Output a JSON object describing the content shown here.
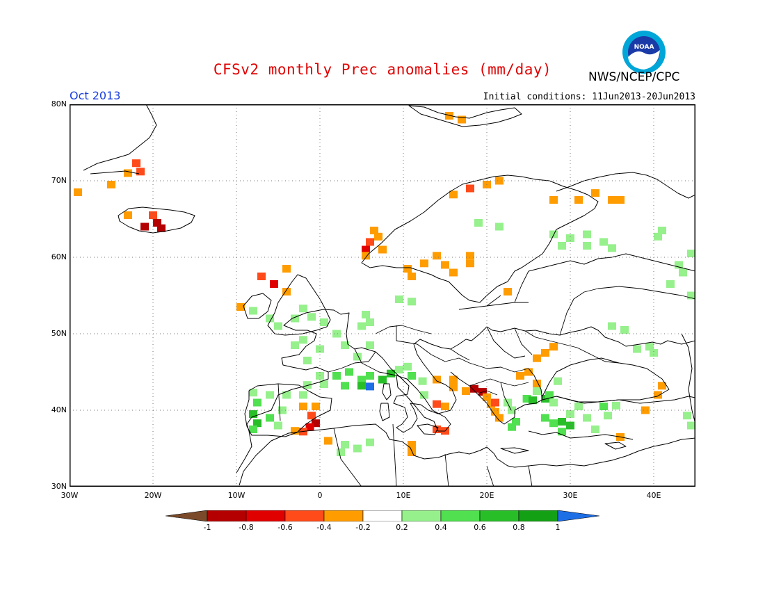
{
  "title": "CFSv2 monthly Prec anomalies (mm/day)",
  "agency": "NWS/NCEP/CPC",
  "logo_text": "NOAA",
  "month": "Oct 2013",
  "initial_conditions": "Initial conditions: 11Jun2013-20Jun2013",
  "y_ticks": [
    "80N",
    "70N",
    "60N",
    "50N",
    "40N",
    "30N"
  ],
  "x_ticks": [
    "30W",
    "20W",
    "10W",
    "0",
    "10E",
    "20E",
    "30E",
    "40E"
  ],
  "colorbar": {
    "labels": [
      "-1",
      "-0.8",
      "-0.6",
      "-0.4",
      "-0.2",
      "0.2",
      "0.4",
      "0.6",
      "0.8",
      "1"
    ],
    "colors": [
      "#7a4a2a",
      "#b40000",
      "#e00000",
      "#ff4a1a",
      "#ff9c00",
      "#ffffff",
      "#96f08c",
      "#50e050",
      "#28be28",
      "#14a014",
      "#1e6ee6"
    ]
  },
  "map": {
    "lon_range": [
      -30,
      45
    ],
    "lat_range": [
      30,
      80
    ],
    "grid_dotted": true,
    "anomaly_patches": [
      {
        "lon": -29,
        "lat": 68.5,
        "v": -0.3
      },
      {
        "lon": -25,
        "lat": 69.5,
        "v": -0.3
      },
      {
        "lon": -23,
        "lat": 71,
        "v": -0.3
      },
      {
        "lon": -21.5,
        "lat": 71.2,
        "v": -0.5
      },
      {
        "lon": -22,
        "lat": 72.3,
        "v": -0.5
      },
      {
        "lon": -23,
        "lat": 65.5,
        "v": -0.3
      },
      {
        "lon": -20,
        "lat": 65.5,
        "v": -0.5
      },
      {
        "lon": -19.5,
        "lat": 64.5,
        "v": -0.9
      },
      {
        "lon": -21,
        "lat": 64,
        "v": -0.9
      },
      {
        "lon": -19,
        "lat": 63.8,
        "v": -0.9
      },
      {
        "lon": -7,
        "lat": 57.5,
        "v": -0.6
      },
      {
        "lon": -5.5,
        "lat": 56.5,
        "v": -0.7
      },
      {
        "lon": -4,
        "lat": 58.5,
        "v": -0.3
      },
      {
        "lon": -4,
        "lat": 55.5,
        "v": -0.3
      },
      {
        "lon": -9.5,
        "lat": 53.5,
        "v": -0.3
      },
      {
        "lon": -8,
        "lat": 53,
        "v": 0.3
      },
      {
        "lon": -6,
        "lat": 52,
        "v": 0.3
      },
      {
        "lon": -3,
        "lat": 52,
        "v": 0.3
      },
      {
        "lon": -2,
        "lat": 53.3,
        "v": 0.3
      },
      {
        "lon": -1,
        "lat": 52.2,
        "v": 0.3
      },
      {
        "lon": 0.5,
        "lat": 51.5,
        "v": 0.3
      },
      {
        "lon": -5,
        "lat": 51,
        "v": 0.3
      },
      {
        "lon": -3,
        "lat": 48.5,
        "v": 0.3
      },
      {
        "lon": -2,
        "lat": 49.2,
        "v": 0.3
      },
      {
        "lon": 0,
        "lat": 48,
        "v": 0.3
      },
      {
        "lon": 2,
        "lat": 50,
        "v": 0.3
      },
      {
        "lon": 3,
        "lat": 48.5,
        "v": 0.3
      },
      {
        "lon": 4.5,
        "lat": 47,
        "v": 0.3
      },
      {
        "lon": 6,
        "lat": 48.5,
        "v": 0.3
      },
      {
        "lon": 5,
        "lat": 51,
        "v": 0.3
      },
      {
        "lon": -1.5,
        "lat": 46.5,
        "v": 0.3
      },
      {
        "lon": 0,
        "lat": 44.5,
        "v": 0.3
      },
      {
        "lon": 2,
        "lat": 44.5,
        "v": 0.5
      },
      {
        "lon": 3.5,
        "lat": 45,
        "v": 0.5
      },
      {
        "lon": 5,
        "lat": 44,
        "v": 0.5
      },
      {
        "lon": 3,
        "lat": 43.2,
        "v": 0.5
      },
      {
        "lon": 6,
        "lat": 44.5,
        "v": 0.5
      },
      {
        "lon": 7.5,
        "lat": 44,
        "v": 0.7
      },
      {
        "lon": 8.5,
        "lat": 44.8,
        "v": 0.7
      },
      {
        "lon": 9.5,
        "lat": 45.3,
        "v": 0.3
      },
      {
        "lon": 10.5,
        "lat": 45.7,
        "v": 0.3
      },
      {
        "lon": 6,
        "lat": 43.1,
        "v": 1.0
      },
      {
        "lon": 5,
        "lat": 43.2,
        "v": 0.7
      },
      {
        "lon": 11,
        "lat": 44.5,
        "v": 0.5
      },
      {
        "lon": 12.3,
        "lat": 43.8,
        "v": 0.3
      },
      {
        "lon": -1.5,
        "lat": 43.3,
        "v": 0.3
      },
      {
        "lon": 0.5,
        "lat": 43.4,
        "v": 0.3
      },
      {
        "lon": -8,
        "lat": 42.3,
        "v": 0.3
      },
      {
        "lon": -6,
        "lat": 42,
        "v": 0.3
      },
      {
        "lon": -4,
        "lat": 42,
        "v": 0.3
      },
      {
        "lon": -2,
        "lat": 42,
        "v": 0.3
      },
      {
        "lon": -7.5,
        "lat": 41,
        "v": 0.5
      },
      {
        "lon": -8,
        "lat": 39.5,
        "v": 0.7
      },
      {
        "lon": -7.5,
        "lat": 38.3,
        "v": 0.7
      },
      {
        "lon": -6,
        "lat": 39,
        "v": 0.5
      },
      {
        "lon": -5,
        "lat": 38,
        "v": 0.3
      },
      {
        "lon": -4.5,
        "lat": 40,
        "v": 0.3
      },
      {
        "lon": -8,
        "lat": 37.5,
        "v": 0.5
      },
      {
        "lon": -2,
        "lat": 40.5,
        "v": -0.3
      },
      {
        "lon": -1,
        "lat": 39.3,
        "v": -0.5
      },
      {
        "lon": -0.5,
        "lat": 38.3,
        "v": -0.9
      },
      {
        "lon": -1.2,
        "lat": 37.8,
        "v": -0.7
      },
      {
        "lon": -3,
        "lat": 37.3,
        "v": -0.3
      },
      {
        "lon": -2,
        "lat": 37.2,
        "v": -0.5
      },
      {
        "lon": -0.5,
        "lat": 40.5,
        "v": -0.3
      },
      {
        "lon": 1,
        "lat": 36,
        "v": -0.3
      },
      {
        "lon": 3,
        "lat": 35.5,
        "v": 0.3
      },
      {
        "lon": 4.5,
        "lat": 35,
        "v": 0.3
      },
      {
        "lon": 6,
        "lat": 35.8,
        "v": 0.3
      },
      {
        "lon": 2.5,
        "lat": 34.5,
        "v": 0.3
      },
      {
        "lon": 11,
        "lat": 35.5,
        "v": -0.3
      },
      {
        "lon": 11,
        "lat": 34.5,
        "v": -0.3
      },
      {
        "lon": 14,
        "lat": 37.5,
        "v": -0.5
      },
      {
        "lon": 15,
        "lat": 37.3,
        "v": -0.5
      },
      {
        "lon": 14,
        "lat": 40.8,
        "v": -0.6
      },
      {
        "lon": 15,
        "lat": 40.5,
        "v": -0.3
      },
      {
        "lon": 14,
        "lat": 44,
        "v": -0.3
      },
      {
        "lon": 16,
        "lat": 44,
        "v": -0.3
      },
      {
        "lon": 16,
        "lat": 43,
        "v": -0.3
      },
      {
        "lon": 17.5,
        "lat": 42.5,
        "v": -0.3
      },
      {
        "lon": 18.5,
        "lat": 42.8,
        "v": -0.9
      },
      {
        "lon": 19.5,
        "lat": 42.4,
        "v": -0.9
      },
      {
        "lon": 20,
        "lat": 41.7,
        "v": -0.3
      },
      {
        "lon": 20.5,
        "lat": 40.8,
        "v": -0.3
      },
      {
        "lon": 21,
        "lat": 39.8,
        "v": -0.3
      },
      {
        "lon": 21.5,
        "lat": 39,
        "v": -0.3
      },
      {
        "lon": 21,
        "lat": 41,
        "v": -0.5
      },
      {
        "lon": 12.5,
        "lat": 42,
        "v": 0.3
      },
      {
        "lon": 22.5,
        "lat": 41,
        "v": 0.3
      },
      {
        "lon": 23,
        "lat": 40,
        "v": 0.3
      },
      {
        "lon": 23.5,
        "lat": 38.5,
        "v": 0.5
      },
      {
        "lon": 23,
        "lat": 37.8,
        "v": 0.5
      },
      {
        "lon": 24.8,
        "lat": 41.5,
        "v": 0.5
      },
      {
        "lon": 25.5,
        "lat": 41.3,
        "v": 0.7
      },
      {
        "lon": 27,
        "lat": 41.5,
        "v": 0.7
      },
      {
        "lon": 27.5,
        "lat": 42,
        "v": 0.5
      },
      {
        "lon": 26,
        "lat": 42.5,
        "v": 0.3
      },
      {
        "lon": 28,
        "lat": 41,
        "v": 0.3
      },
      {
        "lon": 24,
        "lat": 44.5,
        "v": -0.3
      },
      {
        "lon": 25,
        "lat": 45,
        "v": -0.3
      },
      {
        "lon": 26,
        "lat": 43.5,
        "v": -0.3
      },
      {
        "lon": 26,
        "lat": 46.8,
        "v": -0.3
      },
      {
        "lon": 27,
        "lat": 47.5,
        "v": -0.3
      },
      {
        "lon": 28,
        "lat": 48.3,
        "v": -0.3
      },
      {
        "lon": 28.5,
        "lat": 43.8,
        "v": 0.3
      },
      {
        "lon": 27,
        "lat": 39,
        "v": 0.5
      },
      {
        "lon": 28,
        "lat": 38.3,
        "v": 0.5
      },
      {
        "lon": 29,
        "lat": 38.5,
        "v": 0.7
      },
      {
        "lon": 30,
        "lat": 38,
        "v": 0.7
      },
      {
        "lon": 29,
        "lat": 37.2,
        "v": 0.5
      },
      {
        "lon": 30,
        "lat": 39.5,
        "v": 0.3
      },
      {
        "lon": 31,
        "lat": 40.5,
        "v": 0.3
      },
      {
        "lon": 32,
        "lat": 39,
        "v": 0.3
      },
      {
        "lon": 33,
        "lat": 37.5,
        "v": 0.3
      },
      {
        "lon": 34,
        "lat": 40.5,
        "v": 0.5
      },
      {
        "lon": 35.5,
        "lat": 40.6,
        "v": 0.3
      },
      {
        "lon": 34.5,
        "lat": 39.3,
        "v": 0.3
      },
      {
        "lon": 36,
        "lat": 36.5,
        "v": -0.3
      },
      {
        "lon": 39,
        "lat": 40,
        "v": -0.3
      },
      {
        "lon": 40.5,
        "lat": 42,
        "v": -0.3
      },
      {
        "lon": 41,
        "lat": 43.2,
        "v": -0.3
      },
      {
        "lon": 44.5,
        "lat": 38,
        "v": 0.3
      },
      {
        "lon": 44,
        "lat": 39.3,
        "v": 0.3
      },
      {
        "lon": 35,
        "lat": 51,
        "v": 0.3
      },
      {
        "lon": 36.5,
        "lat": 50.5,
        "v": 0.3
      },
      {
        "lon": 38,
        "lat": 48,
        "v": 0.3
      },
      {
        "lon": 39.5,
        "lat": 48.3,
        "v": 0.3
      },
      {
        "lon": 40,
        "lat": 47.5,
        "v": 0.3
      },
      {
        "lon": 16,
        "lat": 58,
        "v": -0.3
      },
      {
        "lon": 14,
        "lat": 60.2,
        "v": -0.3
      },
      {
        "lon": 15,
        "lat": 59,
        "v": -0.3
      },
      {
        "lon": 12.5,
        "lat": 59.2,
        "v": -0.3
      },
      {
        "lon": 10.5,
        "lat": 58.5,
        "v": -0.3
      },
      {
        "lon": 11,
        "lat": 57.5,
        "v": -0.3
      },
      {
        "lon": 18,
        "lat": 60.2,
        "v": -0.3
      },
      {
        "lon": 18,
        "lat": 59.2,
        "v": -0.3
      },
      {
        "lon": 22.5,
        "lat": 55.5,
        "v": -0.3
      },
      {
        "lon": 5.5,
        "lat": 61,
        "v": -0.8
      },
      {
        "lon": 6,
        "lat": 62,
        "v": -0.5
      },
      {
        "lon": 5.5,
        "lat": 60.2,
        "v": -0.3
      },
      {
        "lon": 7,
        "lat": 62.7,
        "v": -0.3
      },
      {
        "lon": 7.5,
        "lat": 61,
        "v": -0.3
      },
      {
        "lon": 6.5,
        "lat": 63.5,
        "v": -0.3
      },
      {
        "lon": 16,
        "lat": 68.2,
        "v": -0.3
      },
      {
        "lon": 18,
        "lat": 69,
        "v": -0.5
      },
      {
        "lon": 20,
        "lat": 69.5,
        "v": -0.3
      },
      {
        "lon": 21.5,
        "lat": 70,
        "v": -0.3
      },
      {
        "lon": 15.5,
        "lat": 78.5,
        "v": -0.3
      },
      {
        "lon": 17,
        "lat": 78,
        "v": -0.3
      },
      {
        "lon": 28,
        "lat": 67.5,
        "v": -0.3
      },
      {
        "lon": 31,
        "lat": 67.5,
        "v": -0.3
      },
      {
        "lon": 33,
        "lat": 68.4,
        "v": -0.3
      },
      {
        "lon": 35,
        "lat": 67.5,
        "v": -0.3
      },
      {
        "lon": 36,
        "lat": 67.5,
        "v": -0.3
      },
      {
        "lon": 19,
        "lat": 64.5,
        "v": 0.3
      },
      {
        "lon": 21.5,
        "lat": 64,
        "v": 0.3
      },
      {
        "lon": 28,
        "lat": 63,
        "v": 0.3
      },
      {
        "lon": 30,
        "lat": 62.5,
        "v": 0.3
      },
      {
        "lon": 32,
        "lat": 63,
        "v": 0.3
      },
      {
        "lon": 34,
        "lat": 62,
        "v": 0.3
      },
      {
        "lon": 29,
        "lat": 61.5,
        "v": 0.3
      },
      {
        "lon": 32,
        "lat": 61.5,
        "v": 0.3
      },
      {
        "lon": 35,
        "lat": 61.2,
        "v": 0.3
      },
      {
        "lon": 41,
        "lat": 63.5,
        "v": 0.3
      },
      {
        "lon": 40.5,
        "lat": 62.7,
        "v": 0.3
      },
      {
        "lon": 43,
        "lat": 59,
        "v": 0.3
      },
      {
        "lon": 43.5,
        "lat": 58,
        "v": 0.3
      },
      {
        "lon": 44.5,
        "lat": 60.5,
        "v": 0.3
      },
      {
        "lon": 42,
        "lat": 56.5,
        "v": 0.3
      },
      {
        "lon": 44.5,
        "lat": 55,
        "v": 0.3
      },
      {
        "lon": 9.5,
        "lat": 54.5,
        "v": 0.3
      },
      {
        "lon": 11,
        "lat": 54.2,
        "v": 0.3
      },
      {
        "lon": 5.5,
        "lat": 52.5,
        "v": 0.3
      },
      {
        "lon": 6,
        "lat": 51.5,
        "v": 0.3
      },
      {
        "lon": -26,
        "lat": 39,
        "v": 0.0
      }
    ]
  }
}
